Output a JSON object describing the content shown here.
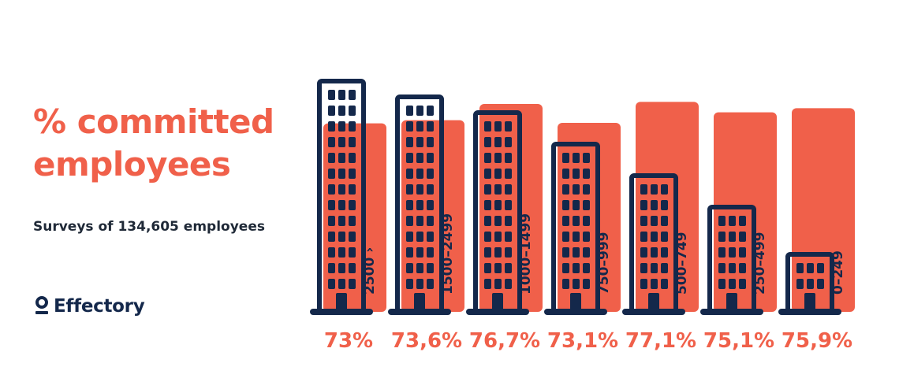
{
  "title": {
    "line1": "% committed",
    "line2": "employees"
  },
  "subtitle": "Surveys of 134,605 employees",
  "logo": {
    "name": "Effectory",
    "icon": "person-pin-icon"
  },
  "colors": {
    "accent": "#F0604A",
    "dark": "#14284B",
    "text": "#1F2937"
  },
  "chart_data": {
    "type": "bar",
    "title": "% committed employees",
    "subtitle": "Surveys of 134,605 employees",
    "categories": [
      "2500 ›",
      "1500–2499",
      "1000–1499",
      "750–999",
      "500–749",
      "250–499",
      "0–249"
    ],
    "values": [
      73,
      73.6,
      76.7,
      73.1,
      77.1,
      75.1,
      75.9
    ],
    "value_labels": [
      "73%",
      "73,6%",
      "76,7%",
      "73,1%",
      "77,1%",
      "75,1%",
      "75,9%"
    ],
    "building_floors": [
      13,
      12,
      11,
      9,
      7,
      5,
      2
    ],
    "grid": false,
    "legend": "none"
  }
}
